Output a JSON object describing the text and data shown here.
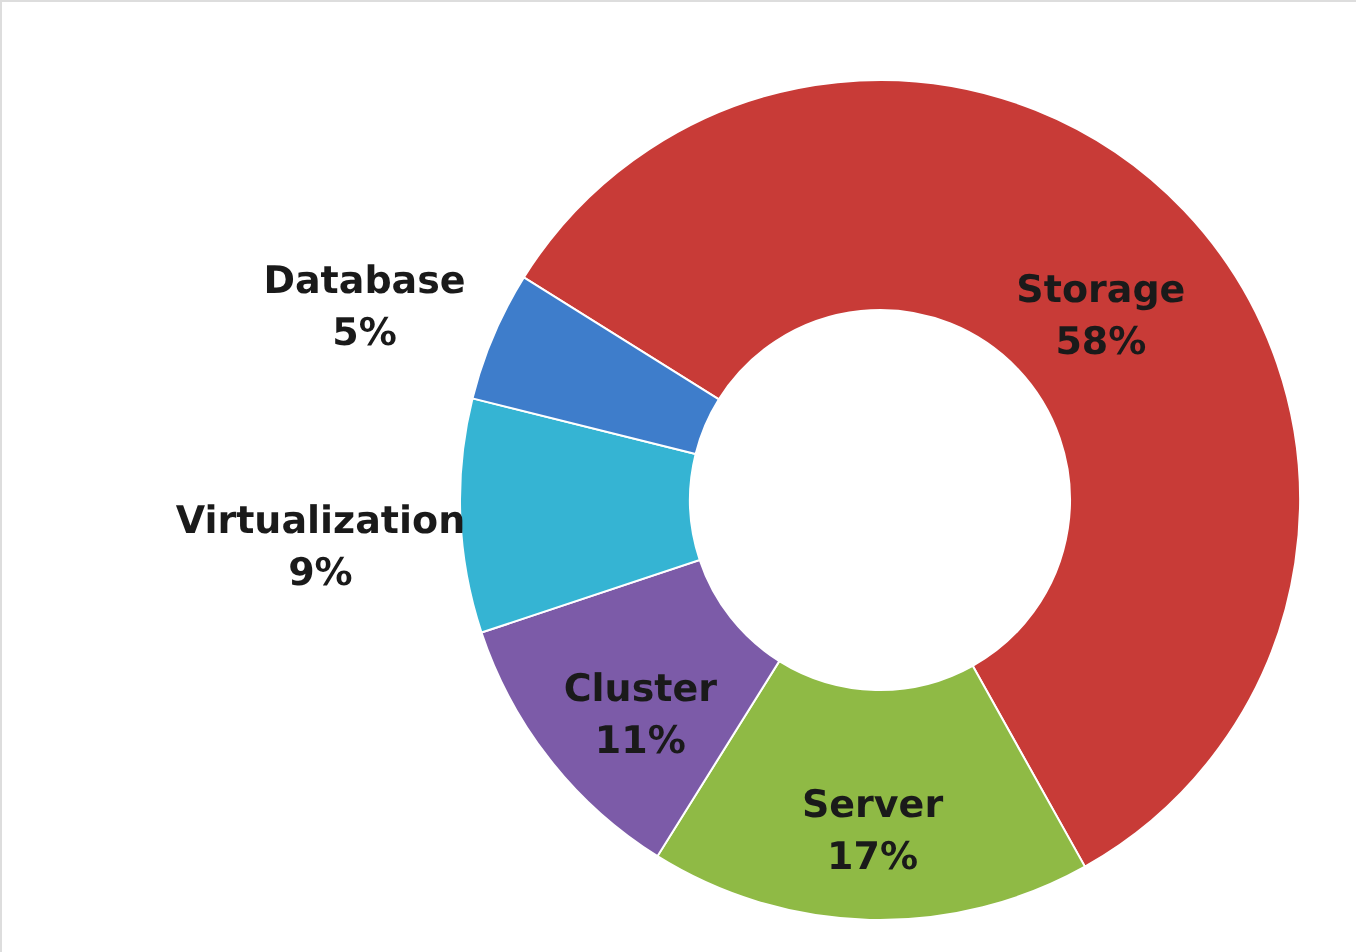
{
  "chart_data": {
    "type": "donut",
    "categories": [
      "Storage",
      "Server",
      "Cluster",
      "Virtualization",
      "Database"
    ],
    "values": [
      58,
      17,
      11,
      9,
      5
    ],
    "value_labels": [
      "58%",
      "17%",
      "11%",
      "9%",
      "5%"
    ],
    "colors": [
      "#c83b37",
      "#8fba45",
      "#7c5ba8",
      "#35b4d3",
      "#3e7dcb"
    ]
  }
}
